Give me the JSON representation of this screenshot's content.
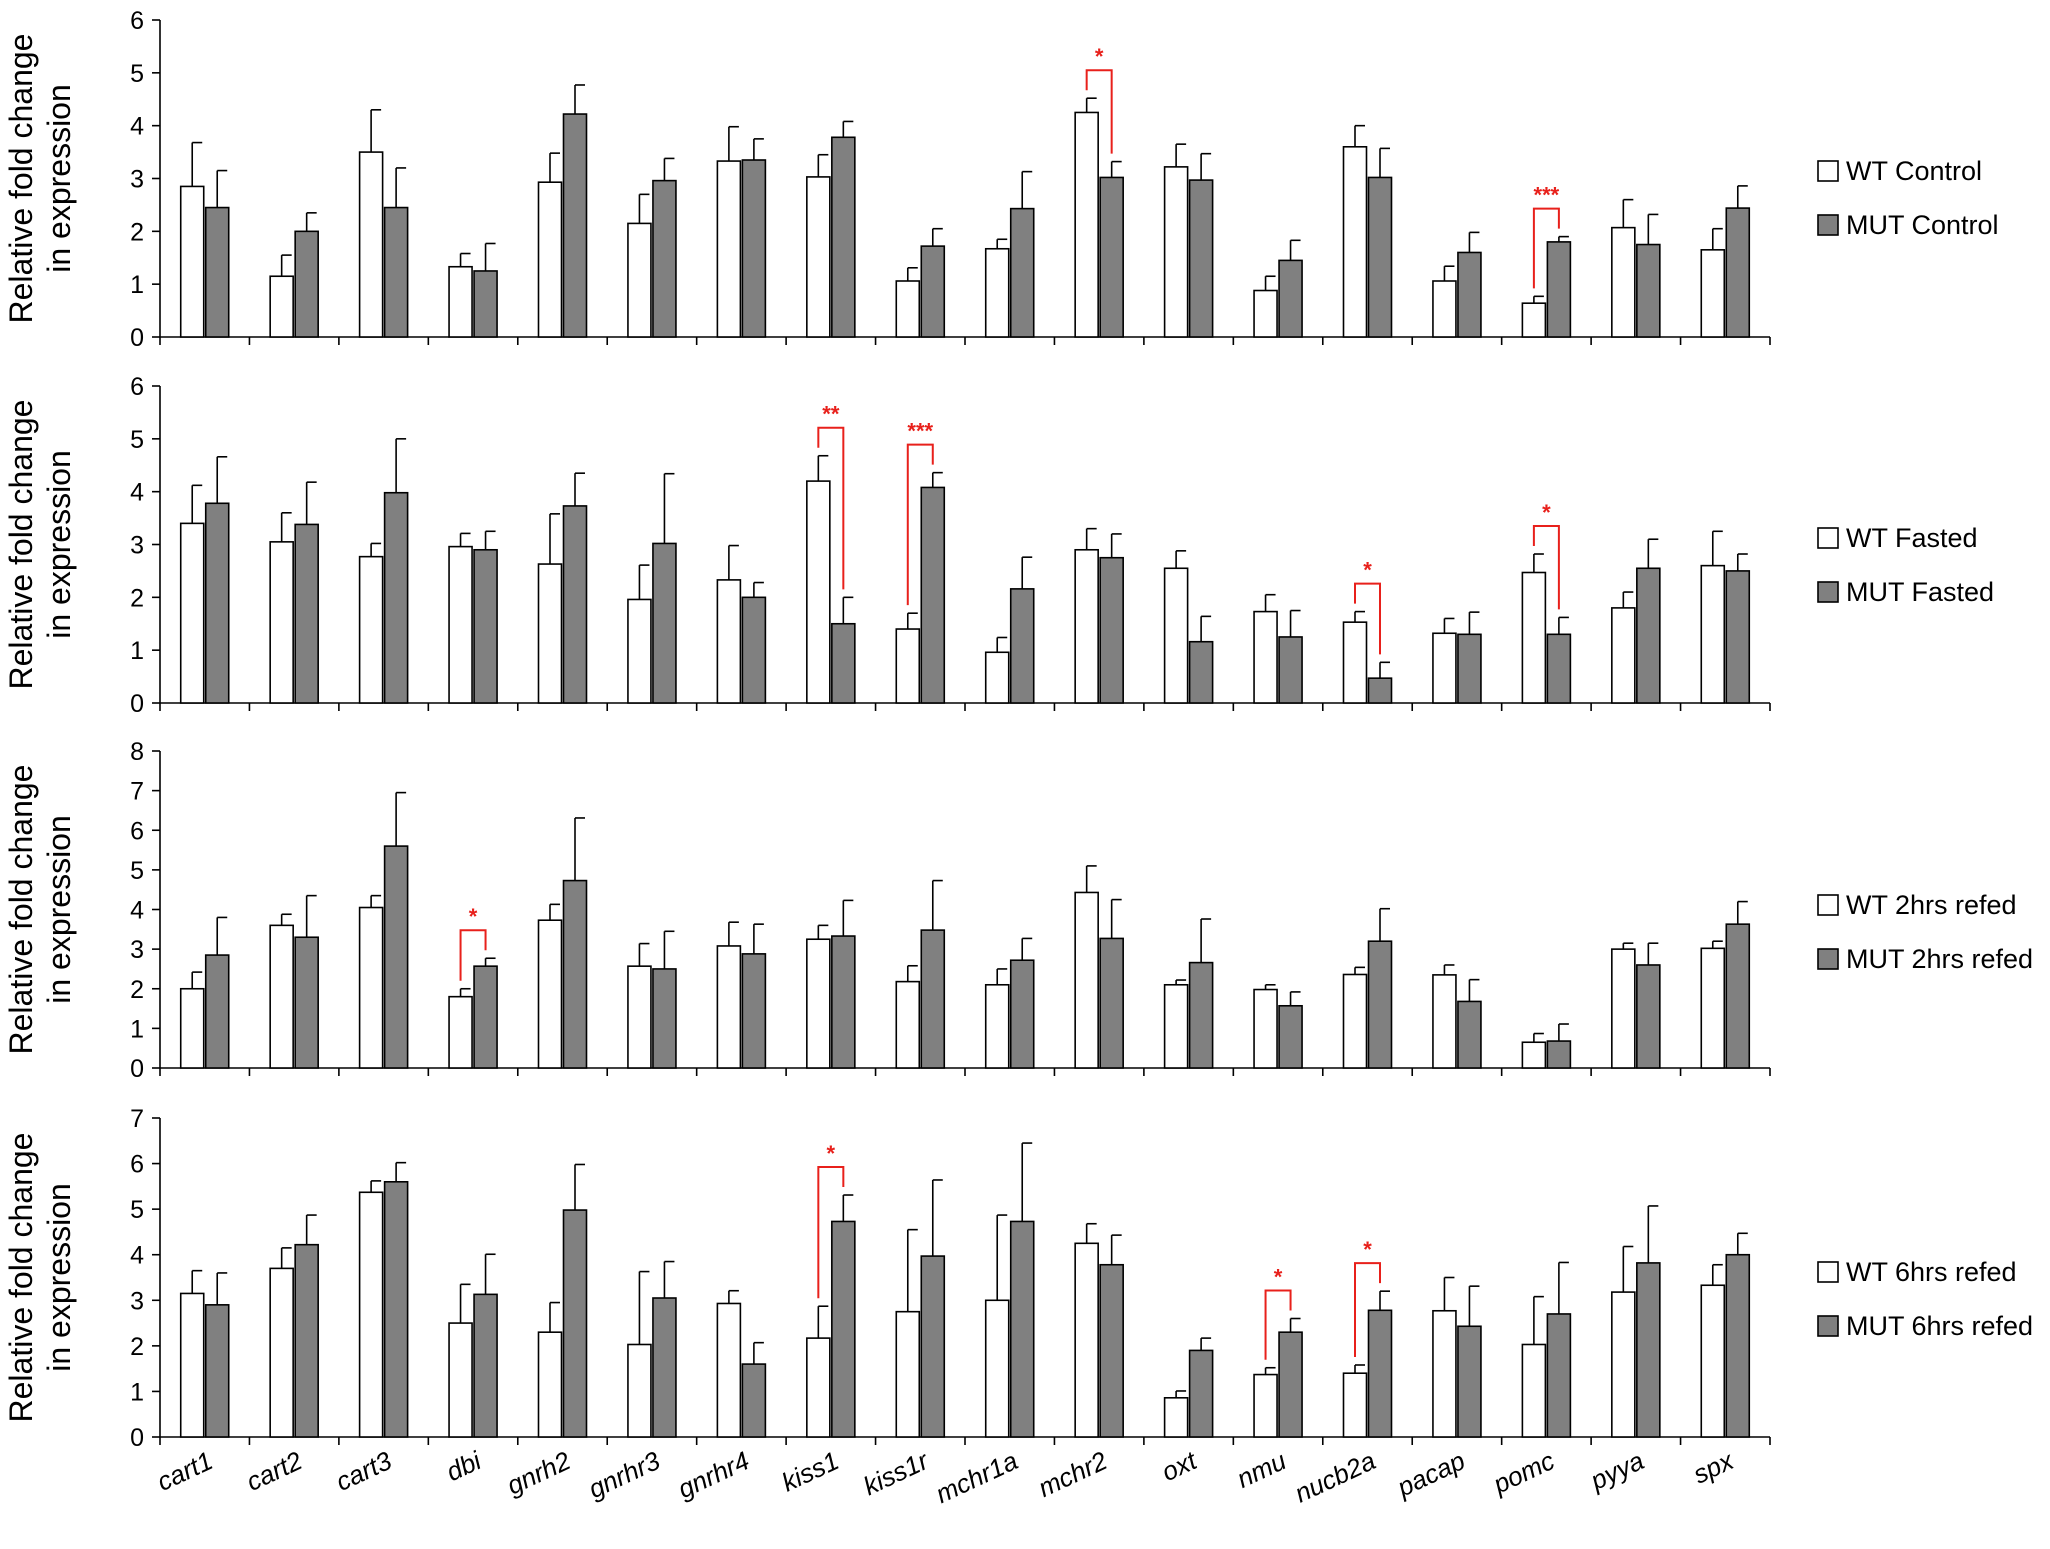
{
  "figure": {
    "y_axis_label_line1": "Relative fold change",
    "y_axis_label_line2": "in expression"
  },
  "colors": {
    "wt_fill": "#ffffff",
    "mut_fill": "#808080",
    "bar_stroke": "#000000",
    "significance": "#e8201b"
  },
  "chart_data": [
    {
      "type": "bar",
      "ylabel": "Relative fold change in expression",
      "ylim": [
        0,
        6
      ],
      "yticks": [
        0,
        1,
        2,
        3,
        4,
        5,
        6
      ],
      "categories": [
        "cart1",
        "cart2",
        "cart3",
        "dbi",
        "gnrh2",
        "gnrhr3",
        "gnrhr4",
        "kiss1",
        "kiss1r",
        "mchr1a",
        "mchr2",
        "oxt",
        "nmu",
        "nucb2a",
        "pacap",
        "pomc",
        "pyya",
        "spx"
      ],
      "legend_position": "right",
      "series": [
        {
          "name": "WT Control",
          "fill": "white",
          "values": [
            2.85,
            1.15,
            3.5,
            1.33,
            2.93,
            2.15,
            3.33,
            3.03,
            1.06,
            1.67,
            4.25,
            3.22,
            0.88,
            3.6,
            1.06,
            0.64,
            2.07,
            1.65
          ],
          "errors": [
            0.83,
            0.4,
            0.8,
            0.25,
            0.55,
            0.55,
            0.65,
            0.42,
            0.25,
            0.18,
            0.27,
            0.43,
            0.27,
            0.4,
            0.28,
            0.13,
            0.53,
            0.4
          ]
        },
        {
          "name": "MUT Control",
          "fill": "gray",
          "values": [
            2.45,
            2.0,
            2.45,
            1.25,
            4.22,
            2.96,
            3.35,
            3.78,
            1.72,
            2.43,
            3.02,
            2.97,
            1.45,
            3.02,
            1.6,
            1.8,
            1.75,
            2.44
          ],
          "errors": [
            0.7,
            0.35,
            0.75,
            0.52,
            0.55,
            0.42,
            0.4,
            0.3,
            0.33,
            0.7,
            0.3,
            0.5,
            0.38,
            0.55,
            0.38,
            0.1,
            0.57,
            0.42
          ]
        }
      ],
      "significance": [
        {
          "category": "mchr2",
          "label": "*"
        },
        {
          "category": "pomc",
          "label": "***"
        }
      ]
    },
    {
      "type": "bar",
      "ylabel": "Relative fold change in expression",
      "ylim": [
        0,
        6
      ],
      "yticks": [
        0,
        1,
        2,
        3,
        4,
        5,
        6
      ],
      "categories": [
        "cart1",
        "cart2",
        "cart3",
        "dbi",
        "gnrh2",
        "gnrhr3",
        "gnrhr4",
        "kiss1",
        "kiss1r",
        "mchr1a",
        "mchr2",
        "oxt",
        "nmu",
        "nucb2a",
        "pacap",
        "pomc",
        "pyya",
        "spx"
      ],
      "legend_position": "right",
      "series": [
        {
          "name": "WT Fasted",
          "fill": "white",
          "values": [
            3.4,
            3.05,
            2.77,
            2.96,
            2.63,
            1.96,
            2.33,
            4.2,
            1.4,
            0.96,
            2.9,
            2.55,
            1.73,
            1.53,
            1.32,
            2.47,
            1.8,
            2.6
          ],
          "errors": [
            0.72,
            0.55,
            0.25,
            0.25,
            0.95,
            0.65,
            0.65,
            0.48,
            0.3,
            0.28,
            0.4,
            0.33,
            0.32,
            0.2,
            0.28,
            0.35,
            0.3,
            0.65
          ]
        },
        {
          "name": "MUT Fasted",
          "fill": "gray",
          "values": [
            3.78,
            3.38,
            3.98,
            2.9,
            3.73,
            3.02,
            2.0,
            1.5,
            4.08,
            2.16,
            2.75,
            1.16,
            1.25,
            0.47,
            1.3,
            1.3,
            2.55,
            2.5
          ],
          "errors": [
            0.88,
            0.8,
            1.02,
            0.35,
            0.62,
            1.32,
            0.28,
            0.5,
            0.28,
            0.6,
            0.45,
            0.48,
            0.5,
            0.3,
            0.42,
            0.32,
            0.55,
            0.32
          ]
        }
      ],
      "significance": [
        {
          "category": "kiss1",
          "label": "**"
        },
        {
          "category": "kiss1r",
          "label": "***"
        },
        {
          "category": "nucb2a",
          "label": "*"
        },
        {
          "category": "pomc",
          "label": "*"
        }
      ]
    },
    {
      "type": "bar",
      "ylabel": "Relative fold change in expression",
      "ylim": [
        0,
        8
      ],
      "yticks": [
        0,
        1,
        2,
        3,
        4,
        5,
        6,
        7,
        8
      ],
      "categories": [
        "cart1",
        "cart2",
        "cart3",
        "dbi",
        "gnrh2",
        "gnrhr3",
        "gnrhr4",
        "kiss1",
        "kiss1r",
        "mchr1a",
        "mchr2",
        "oxt",
        "nmu",
        "nucb2a",
        "pacap",
        "pomc",
        "pyya",
        "spx"
      ],
      "legend_position": "right",
      "series": [
        {
          "name": "WT 2hrs refed",
          "fill": "white",
          "values": [
            2.0,
            3.6,
            4.05,
            1.8,
            3.73,
            2.57,
            3.08,
            3.25,
            2.18,
            2.1,
            4.43,
            2.1,
            1.98,
            2.36,
            2.35,
            0.65,
            3.0,
            3.02
          ],
          "errors": [
            0.42,
            0.28,
            0.3,
            0.2,
            0.4,
            0.57,
            0.6,
            0.35,
            0.4,
            0.4,
            0.67,
            0.12,
            0.12,
            0.18,
            0.25,
            0.22,
            0.15,
            0.18
          ]
        },
        {
          "name": "MUT 2hrs refed",
          "fill": "gray",
          "values": [
            2.85,
            3.3,
            5.6,
            2.57,
            4.73,
            2.5,
            2.88,
            3.33,
            3.48,
            2.72,
            3.27,
            2.66,
            1.57,
            3.2,
            1.68,
            0.68,
            2.6,
            3.63
          ],
          "errors": [
            0.95,
            1.05,
            1.35,
            0.2,
            1.58,
            0.95,
            0.75,
            0.9,
            1.25,
            0.55,
            0.98,
            1.1,
            0.35,
            0.82,
            0.55,
            0.43,
            0.55,
            0.57
          ]
        }
      ],
      "significance": [
        {
          "category": "dbi",
          "label": "*"
        }
      ]
    },
    {
      "type": "bar",
      "ylabel": "Relative fold change in expression",
      "ylim": [
        0,
        7
      ],
      "yticks": [
        0,
        1,
        2,
        3,
        4,
        5,
        6,
        7
      ],
      "categories": [
        "cart1",
        "cart2",
        "cart3",
        "dbi",
        "gnrh2",
        "gnrhr3",
        "gnrhr4",
        "kiss1",
        "kiss1r",
        "mchr1a",
        "mchr2",
        "oxt",
        "nmu",
        "nucb2a",
        "pacap",
        "pomc",
        "pyya",
        "spx"
      ],
      "legend_position": "right",
      "series": [
        {
          "name": "WT 6hrs refed",
          "fill": "white",
          "values": [
            3.15,
            3.7,
            5.37,
            2.5,
            2.3,
            2.03,
            2.93,
            2.17,
            2.75,
            3.0,
            4.25,
            0.86,
            1.37,
            1.4,
            2.77,
            2.03,
            3.18,
            3.33
          ],
          "errors": [
            0.5,
            0.45,
            0.25,
            0.85,
            0.65,
            1.6,
            0.28,
            0.7,
            1.8,
            1.87,
            0.43,
            0.15,
            0.15,
            0.18,
            0.73,
            1.05,
            1.0,
            0.45
          ]
        },
        {
          "name": "MUT 6hrs refed",
          "fill": "gray",
          "values": [
            2.9,
            4.22,
            5.6,
            3.13,
            4.98,
            3.05,
            1.6,
            4.73,
            3.97,
            4.73,
            3.78,
            1.9,
            2.3,
            2.78,
            2.43,
            2.7,
            3.82,
            4.0
          ],
          "errors": [
            0.7,
            0.65,
            0.42,
            0.88,
            1.0,
            0.8,
            0.47,
            0.58,
            1.67,
            1.72,
            0.65,
            0.27,
            0.3,
            0.42,
            0.88,
            1.13,
            1.25,
            0.47
          ]
        }
      ],
      "significance": [
        {
          "category": "kiss1",
          "label": "*"
        },
        {
          "category": "nmu",
          "label": "*"
        },
        {
          "category": "nucb2a",
          "label": "*"
        }
      ]
    }
  ]
}
